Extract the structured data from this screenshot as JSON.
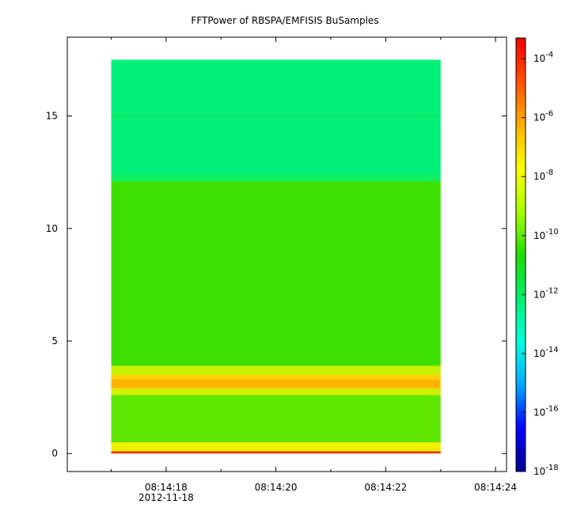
{
  "chart_data": {
    "type": "heatmap",
    "title": "FFTPower of RBSPA/EMFISIS  BuSamples",
    "x_ticks": [
      {
        "value": 18,
        "label": "08:14:18",
        "sublabel": "2012-11-18"
      },
      {
        "value": 20,
        "label": "08:14:20"
      },
      {
        "value": 22,
        "label": "08:14:22"
      },
      {
        "value": 24,
        "label": "08:14:24"
      }
    ],
    "x_minor_ticks": [
      17,
      19,
      21,
      23
    ],
    "xlim": [
      16.2,
      24.2
    ],
    "data_x_range": [
      17.0,
      23.0
    ],
    "y_ticks": [
      0,
      5,
      10,
      15
    ],
    "ylim": [
      -0.8,
      18.5
    ],
    "data_y_range": [
      0.0,
      17.5
    ],
    "colorbar": {
      "scale": "log",
      "range_exp": [
        -18,
        -3.3
      ],
      "tick_labels": [
        {
          "base": "10",
          "exp": "-4"
        },
        {
          "base": "10",
          "exp": "-6"
        },
        {
          "base": "10",
          "exp": "-8"
        },
        {
          "base": "10",
          "exp": "-10"
        },
        {
          "base": "10",
          "exp": "-12"
        },
        {
          "base": "10",
          "exp": "-14"
        },
        {
          "base": "10",
          "exp": "-16"
        },
        {
          "base": "10",
          "exp": "-18"
        }
      ],
      "tick_exps": [
        -4,
        -6,
        -8,
        -10,
        -12,
        -14,
        -16,
        -18
      ],
      "colors": [
        "#00008c",
        "#0000ff",
        "#00aaff",
        "#00ffdd",
        "#00f070",
        "#22dd00",
        "#aaff00",
        "#ffff00",
        "#ffb000",
        "#ff5000",
        "#ee0000"
      ]
    },
    "bands": [
      {
        "y_from": 0.0,
        "y_to": 0.1,
        "log_power": -5.5,
        "color": "#e53a00"
      },
      {
        "y_from": 0.1,
        "y_to": 0.5,
        "log_power": -8.8,
        "color": "#f0f000"
      },
      {
        "y_from": 0.5,
        "y_to": 2.6,
        "log_power": -10.3,
        "color": "#5ee600"
      },
      {
        "y_from": 2.6,
        "y_to": 2.9,
        "log_power": -9.3,
        "color": "#d2f000"
      },
      {
        "y_from": 2.9,
        "y_to": 3.3,
        "log_power": -7.5,
        "color": "#ffb500"
      },
      {
        "y_from": 3.3,
        "y_to": 3.5,
        "log_power": -7.8,
        "color": "#ffd000"
      },
      {
        "y_from": 3.5,
        "y_to": 3.9,
        "log_power": -9.5,
        "color": "#c8f000"
      },
      {
        "y_from": 3.9,
        "y_to": 12.1,
        "log_power": -10.6,
        "color": "#3ee000"
      },
      {
        "y_from": 12.1,
        "y_to": 12.4,
        "log_power": -11.3,
        "color": "#10f060"
      },
      {
        "y_from": 12.4,
        "y_to": 17.5,
        "log_power": -12.0,
        "color": "#00f07a"
      }
    ],
    "lines": [
      {
        "y": 15.0,
        "log_power": -11.0,
        "color": "#20e040"
      }
    ]
  }
}
